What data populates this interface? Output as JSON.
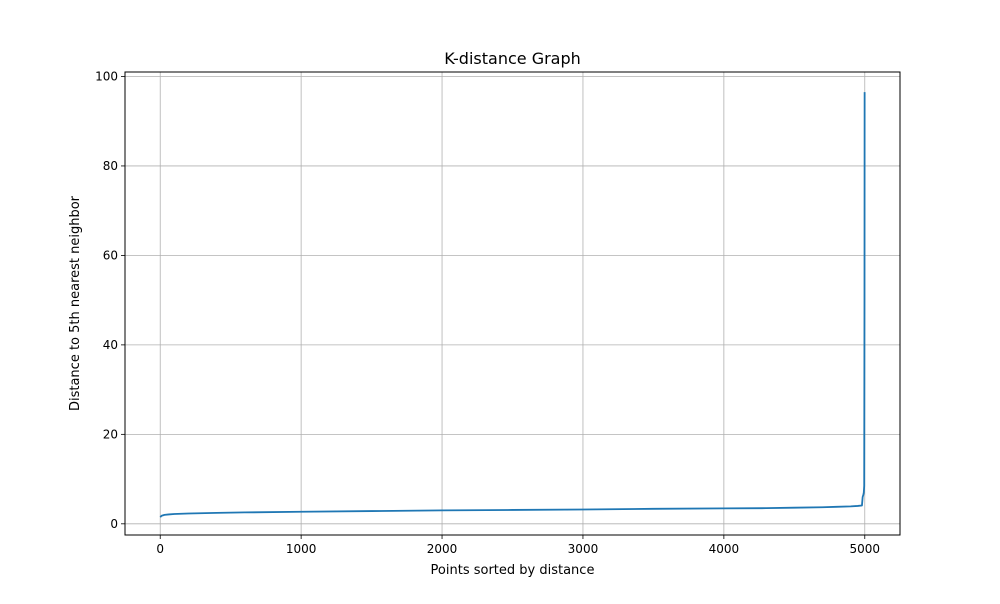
{
  "chart_data": {
    "type": "line",
    "title": "K-distance Graph",
    "xlabel": "Points sorted by distance",
    "ylabel": "Distance to 5th nearest neighbor",
    "xlim": [
      -250,
      5250
    ],
    "ylim": [
      -2.5,
      101
    ],
    "xticks": [
      0,
      1000,
      2000,
      3000,
      4000,
      5000
    ],
    "yticks": [
      0,
      20,
      40,
      60,
      80,
      100
    ],
    "grid": true,
    "legend": "none",
    "series": [
      {
        "color": "#1f77b4",
        "x": [
          0,
          10,
          30,
          60,
          100,
          200,
          400,
          600,
          1000,
          1500,
          2000,
          2500,
          3000,
          3500,
          4000,
          4300,
          4500,
          4700,
          4800,
          4900,
          4950,
          4980,
          4985,
          4990,
          4993,
          4996,
          4998,
          4999
        ],
        "y": [
          1.5,
          1.8,
          2.0,
          2.1,
          2.2,
          2.3,
          2.45,
          2.55,
          2.7,
          2.85,
          3.0,
          3.1,
          3.2,
          3.35,
          3.45,
          3.5,
          3.6,
          3.7,
          3.8,
          3.9,
          4.0,
          4.1,
          6.0,
          6.5,
          7.0,
          8.5,
          50.0,
          96.5
        ]
      }
    ]
  }
}
